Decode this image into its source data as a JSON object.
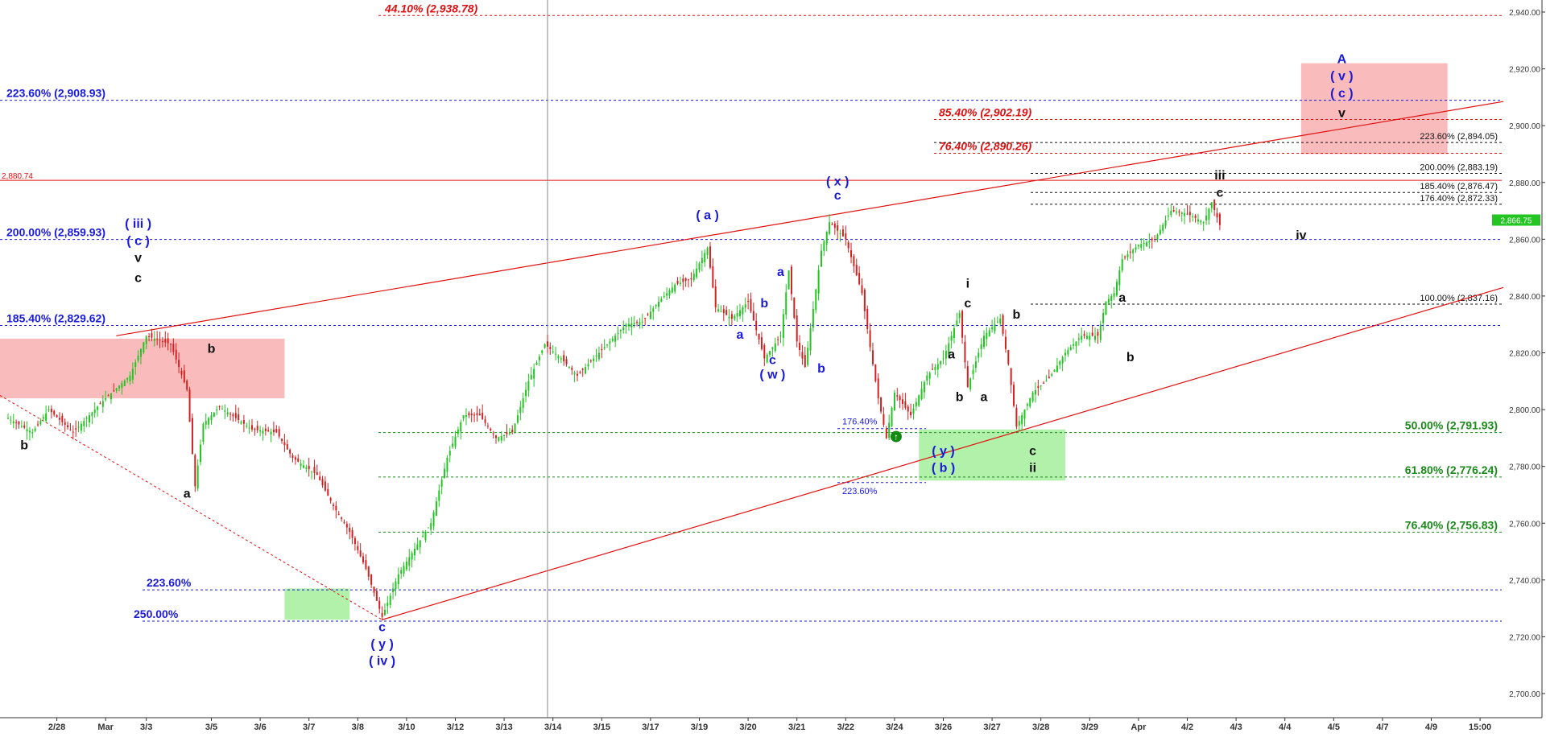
{
  "chart_data": {
    "type": "line",
    "subtype": "candlestick",
    "ylim": [
      2690,
      2950
    ],
    "y_ticks": [
      2700,
      2720,
      2740,
      2760,
      2780,
      2800,
      2820,
      2840,
      2860,
      2880,
      2900,
      2920,
      2940
    ],
    "y_tick_labels": [
      "2,700.00",
      "2,720.00",
      "2,740.00",
      "2,760.00",
      "2,780.00",
      "2,800.00",
      "2,820.00",
      "2,840.00",
      "2,860.00",
      "2,880.00",
      "2,900.00",
      "2,920.00",
      "2,940.00"
    ],
    "x_ticks": [
      {
        "label": "2/28",
        "i": 6
      },
      {
        "label": "Mar",
        "i": 12
      },
      {
        "label": "3/3",
        "i": 17
      },
      {
        "label": "3/5",
        "i": 25
      },
      {
        "label": "3/6",
        "i": 31
      },
      {
        "label": "3/7",
        "i": 37
      },
      {
        "label": "3/8",
        "i": 43
      },
      {
        "label": "3/10",
        "i": 49
      },
      {
        "label": "3/12",
        "i": 55
      },
      {
        "label": "3/13",
        "i": 61
      },
      {
        "label": "3/14",
        "i": 67
      },
      {
        "label": "3/15",
        "i": 73
      },
      {
        "label": "3/17",
        "i": 79
      },
      {
        "label": "3/19",
        "i": 85
      },
      {
        "label": "3/20",
        "i": 91
      },
      {
        "label": "3/21",
        "i": 97
      },
      {
        "label": "3/22",
        "i": 103
      },
      {
        "label": "3/24",
        "i": 109
      },
      {
        "label": "3/26",
        "i": 115
      },
      {
        "label": "3/27",
        "i": 121
      },
      {
        "label": "3/28",
        "i": 127
      },
      {
        "label": "3/29",
        "i": 133
      },
      {
        "label": "Apr",
        "i": 139
      },
      {
        "label": "4/2",
        "i": 145
      },
      {
        "label": "4/3",
        "i": 151
      },
      {
        "label": "4/4",
        "i": 157
      },
      {
        "label": "4/5",
        "i": 163
      },
      {
        "label": "4/7",
        "i": 169
      },
      {
        "label": "4/9",
        "i": 175
      },
      {
        "label": "15:00",
        "i": 181
      }
    ],
    "price_path": [
      [
        0,
        2797
      ],
      [
        3,
        2792
      ],
      [
        5,
        2800
      ],
      [
        8,
        2792
      ],
      [
        12,
        2804
      ],
      [
        15,
        2812
      ],
      [
        17,
        2826
      ],
      [
        20,
        2823
      ],
      [
        22,
        2807
      ],
      [
        23,
        2773
      ],
      [
        24,
        2795
      ],
      [
        26,
        2801
      ],
      [
        28,
        2797
      ],
      [
        30,
        2793
      ],
      [
        33,
        2792
      ],
      [
        35,
        2783
      ],
      [
        38,
        2777
      ],
      [
        40,
        2766
      ],
      [
        42,
        2757
      ],
      [
        44,
        2744
      ],
      [
        46,
        2727
      ],
      [
        48,
        2742
      ],
      [
        50,
        2751
      ],
      [
        52,
        2760
      ],
      [
        54,
        2783
      ],
      [
        56,
        2798
      ],
      [
        58,
        2798
      ],
      [
        60,
        2790
      ],
      [
        62,
        2792
      ],
      [
        64,
        2810
      ],
      [
        66,
        2823
      ],
      [
        68,
        2818
      ],
      [
        70,
        2812
      ],
      [
        72,
        2818
      ],
      [
        74,
        2824
      ],
      [
        76,
        2830
      ],
      [
        78,
        2831
      ],
      [
        80,
        2838
      ],
      [
        82,
        2844
      ],
      [
        84,
        2846
      ],
      [
        86,
        2857
      ],
      [
        87,
        2836
      ],
      [
        89,
        2832
      ],
      [
        91,
        2838
      ],
      [
        93,
        2818
      ],
      [
        95,
        2826
      ],
      [
        96,
        2849
      ],
      [
        97,
        2824
      ],
      [
        98,
        2815
      ],
      [
        100,
        2856
      ],
      [
        101,
        2866
      ],
      [
        103,
        2860
      ],
      [
        105,
        2841
      ],
      [
        106,
        2822
      ],
      [
        107,
        2804
      ],
      [
        108,
        2790
      ],
      [
        109,
        2806
      ],
      [
        111,
        2798
      ],
      [
        113,
        2812
      ],
      [
        115,
        2818
      ],
      [
        117,
        2834
      ],
      [
        118,
        2808
      ],
      [
        120,
        2826
      ],
      [
        122,
        2832
      ],
      [
        123,
        2816
      ],
      [
        124,
        2794
      ],
      [
        126,
        2806
      ],
      [
        128,
        2811
      ],
      [
        130,
        2820
      ],
      [
        132,
        2826
      ],
      [
        134,
        2826
      ],
      [
        135,
        2838
      ],
      [
        136,
        2841
      ],
      [
        137,
        2853
      ],
      [
        139,
        2858
      ],
      [
        141,
        2860
      ],
      [
        143,
        2870
      ],
      [
        145,
        2869
      ],
      [
        147,
        2866
      ],
      [
        148,
        2873
      ],
      [
        149,
        2865
      ]
    ],
    "series": [],
    "fib_levels": [
      {
        "label": "223.60% (2,908.93)",
        "value": 2908.93,
        "color": "#1a1adb"
      },
      {
        "label": "200.00% (2,859.93)",
        "value": 2859.93,
        "color": "#1a1adb"
      },
      {
        "label": "185.40% (2,829.62)",
        "value": 2829.62,
        "color": "#1a1adb"
      },
      {
        "label": "223.60%",
        "value": 2736.5,
        "color": "#1a1adb"
      },
      {
        "label": "250.00%",
        "value": 2725.5,
        "color": "#1a1adb"
      },
      {
        "label": "44.10% (2,938.78)",
        "value": 2938.78,
        "color": "#e01010"
      },
      {
        "label": "85.40% (2,902.19)",
        "value": 2902.19,
        "color": "#e01010"
      },
      {
        "label": "76.40% (2,890.26)",
        "value": 2890.26,
        "color": "#e01010"
      },
      {
        "label": "223.60% (2,894.05)",
        "value": 2894.05,
        "color": "#111111"
      },
      {
        "label": "200.00% (2,883.19)",
        "value": 2883.19,
        "color": "#111111"
      },
      {
        "label": "185.40% (2,876.47)",
        "value": 2876.47,
        "color": "#111111"
      },
      {
        "label": "176.40% (2,872.33)",
        "value": 2872.33,
        "color": "#111111"
      },
      {
        "label": "100.00% (2,837.16)",
        "value": 2837.16,
        "color": "#111111"
      },
      {
        "label": "50.00% (2,791.93)",
        "value": 2791.93,
        "color": "#1a8a1a"
      },
      {
        "label": "61.80% (2,776.24)",
        "value": 2776.24,
        "color": "#1a8a1a"
      },
      {
        "label": "76.40% (2,756.83)",
        "value": 2756.83,
        "color": "#1a8a1a"
      },
      {
        "label": "176.40%",
        "value": 2793.3,
        "color": "#1a1adb"
      },
      {
        "label": "223.60%",
        "value": 2774.3,
        "color": "#1a1adb"
      }
    ],
    "horizontal_line": {
      "label": "2,880.74",
      "value": 2880.74,
      "color": "#e01010"
    },
    "current_price": {
      "label": "2,866.75",
      "value": 2866.75,
      "color": "#22c522"
    },
    "wave_labels": [
      {
        "text": "b",
        "i": 2,
        "v": 2786,
        "color": "#111111"
      },
      {
        "text": "( iii )",
        "i": 16,
        "v": 2864,
        "color": "#1a1adb"
      },
      {
        "text": "( c )",
        "i": 16,
        "v": 2858,
        "color": "#1a1adb"
      },
      {
        "text": "v",
        "i": 16,
        "v": 2852,
        "color": "#111111"
      },
      {
        "text": "c",
        "i": 16,
        "v": 2845,
        "color": "#111111"
      },
      {
        "text": "b",
        "i": 25,
        "v": 2820,
        "color": "#111111"
      },
      {
        "text": "a",
        "i": 22,
        "v": 2769,
        "color": "#111111"
      },
      {
        "text": "c",
        "i": 46,
        "v": 2722,
        "color": "#1a1adb"
      },
      {
        "text": "( y )",
        "i": 46,
        "v": 2716,
        "color": "#1a1adb"
      },
      {
        "text": "( iv )",
        "i": 46,
        "v": 2710,
        "color": "#1a1adb"
      },
      {
        "text": "( a )",
        "i": 86,
        "v": 2867,
        "color": "#1a1adb"
      },
      {
        "text": "( x )",
        "i": 102,
        "v": 2879,
        "color": "#1a1adb"
      },
      {
        "text": "c",
        "i": 102,
        "v": 2874,
        "color": "#1a1adb"
      },
      {
        "text": "a",
        "i": 95,
        "v": 2847,
        "color": "#1a1adb"
      },
      {
        "text": "b",
        "i": 93,
        "v": 2836,
        "color": "#1a1adb"
      },
      {
        "text": "a",
        "i": 90,
        "v": 2825,
        "color": "#1a1adb"
      },
      {
        "text": "c",
        "i": 94,
        "v": 2816,
        "color": "#1a1adb"
      },
      {
        "text": "( w )",
        "i": 94,
        "v": 2811,
        "color": "#1a1adb"
      },
      {
        "text": "b",
        "i": 100,
        "v": 2813,
        "color": "#1a1adb"
      },
      {
        "text": "( y )",
        "i": 115,
        "v": 2784,
        "color": "#1a1adb"
      },
      {
        "text": "( b )",
        "i": 115,
        "v": 2778,
        "color": "#1a1adb"
      },
      {
        "text": "a",
        "i": 116,
        "v": 2818,
        "color": "#111111"
      },
      {
        "text": "b",
        "i": 117,
        "v": 2803,
        "color": "#111111"
      },
      {
        "text": "a",
        "i": 120,
        "v": 2803,
        "color": "#111111"
      },
      {
        "text": "i",
        "i": 118,
        "v": 2843,
        "color": "#111111"
      },
      {
        "text": "c",
        "i": 118,
        "v": 2836,
        "color": "#111111"
      },
      {
        "text": "b",
        "i": 124,
        "v": 2832,
        "color": "#111111"
      },
      {
        "text": "c",
        "i": 126,
        "v": 2784,
        "color": "#111111"
      },
      {
        "text": "ii",
        "i": 126,
        "v": 2778,
        "color": "#111111"
      },
      {
        "text": "a",
        "i": 137,
        "v": 2838,
        "color": "#111111"
      },
      {
        "text": "b",
        "i": 138,
        "v": 2817,
        "color": "#111111"
      },
      {
        "text": "iii",
        "i": 149,
        "v": 2881,
        "color": "#111111"
      },
      {
        "text": "c",
        "i": 149,
        "v": 2875,
        "color": "#111111"
      },
      {
        "text": "iv",
        "i": 159,
        "v": 2860,
        "color": "#111111"
      },
      {
        "text": "A",
        "i": 164,
        "v": 2922,
        "color": "#1a1adb"
      },
      {
        "text": "( v )",
        "i": 164,
        "v": 2916,
        "color": "#1a1adb"
      },
      {
        "text": "( c )",
        "i": 164,
        "v": 2910,
        "color": "#1a1adb"
      },
      {
        "text": "v",
        "i": 164,
        "v": 2903,
        "color": "#111111"
      }
    ],
    "grid": false,
    "legend": "none",
    "title": "",
    "xlabel": "",
    "ylabel": ""
  }
}
